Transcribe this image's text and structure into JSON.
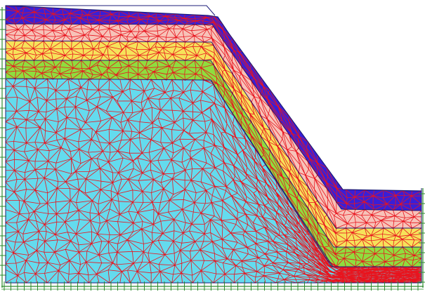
{
  "figure": {
    "kind": "finite-element mesh of a layered slope",
    "mesh_color": "#e8141e",
    "outline_color": "#1c1c7a",
    "support_color": "#2e8b2e",
    "layers": [
      {
        "id": "layer-1",
        "color": "#3a1fd6"
      },
      {
        "id": "layer-2",
        "color": "#f7c2b8"
      },
      {
        "id": "layer-3",
        "color": "#f6e25a"
      },
      {
        "id": "layer-4",
        "color": "#8fdd3e"
      },
      {
        "id": "layer-5",
        "color": "#64dbee"
      }
    ]
  }
}
